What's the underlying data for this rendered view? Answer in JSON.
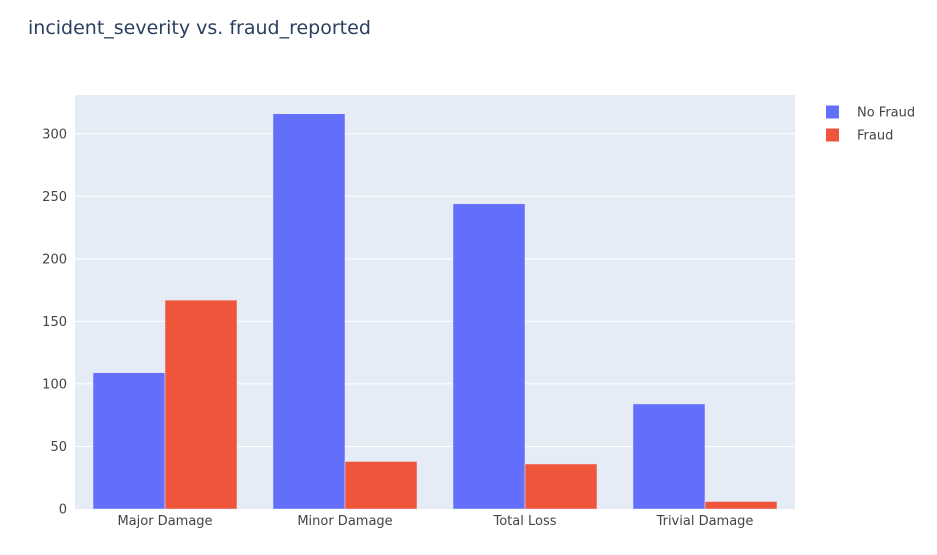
{
  "chart_data": {
    "type": "bar",
    "title": "incident_severity vs. fraud_reported",
    "xlabel": "",
    "ylabel": "",
    "categories": [
      "Major Damage",
      "Minor Damage",
      "Total Loss",
      "Trivial Damage"
    ],
    "series": [
      {
        "name": "No Fraud",
        "color": "#636efa",
        "values": [
          109,
          316,
          244,
          84
        ]
      },
      {
        "name": "Fraud",
        "color": "#ef553b",
        "values": [
          167,
          38,
          36,
          6
        ]
      }
    ],
    "ylim": [
      0,
      331
    ],
    "yticks": [
      0,
      50,
      100,
      150,
      200,
      250,
      300
    ],
    "grid": true,
    "legend": "top-right",
    "plot_background": "#e5ecf6"
  }
}
